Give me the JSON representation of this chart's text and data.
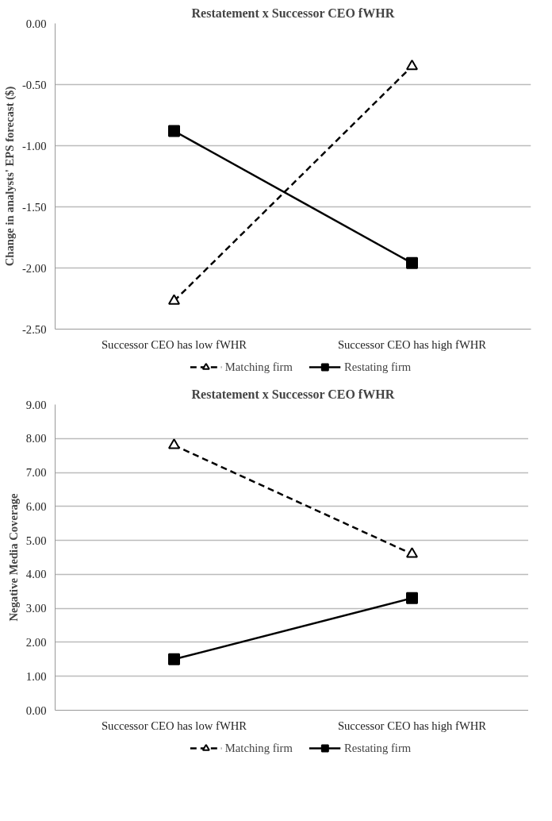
{
  "chart_data": [
    {
      "type": "line",
      "title": "Restatement x Successor CEO fWHR",
      "ylabel": "Change in analysts' EPS forecast ($)",
      "categories": [
        "Successor CEO has low fWHR",
        "Successor CEO has high fWHR"
      ],
      "series": [
        {
          "name": "Matching firm",
          "color": "#000000",
          "values": [
            -2.27,
            -0.35
          ],
          "marker": "triangle",
          "line_style": "dashed"
        },
        {
          "name": "Restating firm",
          "color": "#000000",
          "values": [
            -0.88,
            -1.96
          ],
          "marker": "square",
          "line_style": "solid"
        }
      ],
      "ylim": [
        -2.5,
        0
      ],
      "yticks": [
        {
          "value": -2.5,
          "label": "-2.50"
        },
        {
          "value": -2,
          "label": "-2.00"
        },
        {
          "value": -1.5,
          "label": "-1.50"
        },
        {
          "value": -1,
          "label": "-1.00"
        },
        {
          "value": -0.5,
          "label": "-0.50"
        },
        {
          "value": 0,
          "label": "0.00"
        }
      ],
      "grid": "y",
      "legend": "bottom"
    },
    {
      "type": "line",
      "title": "Restatement x Successor CEO fWHR",
      "ylabel": "Negative Media Coverage",
      "categories": [
        "Successor CEO has low fWHR",
        "Successor CEO has high fWHR"
      ],
      "series": [
        {
          "name": "Matching firm",
          "color": "#000000",
          "values": [
            7.8,
            4.6
          ],
          "marker": "triangle",
          "line_style": "dashed"
        },
        {
          "name": "Restating firm",
          "color": "#000000",
          "values": [
            1.5,
            3.3
          ],
          "marker": "square",
          "line_style": "solid"
        }
      ],
      "ylim": [
        0,
        9
      ],
      "yticks": [
        {
          "value": 0,
          "label": "0.00"
        },
        {
          "value": 1,
          "label": "1.00"
        },
        {
          "value": 2,
          "label": "2.00"
        },
        {
          "value": 3,
          "label": "3.00"
        },
        {
          "value": 4,
          "label": "4.00"
        },
        {
          "value": 5,
          "label": "5.00"
        },
        {
          "value": 6,
          "label": "6.00"
        },
        {
          "value": 7,
          "label": "7.00"
        },
        {
          "value": 8,
          "label": "8.00"
        },
        {
          "value": 9,
          "label": "9.00"
        }
      ],
      "grid": "y",
      "legend": "bottom"
    }
  ]
}
